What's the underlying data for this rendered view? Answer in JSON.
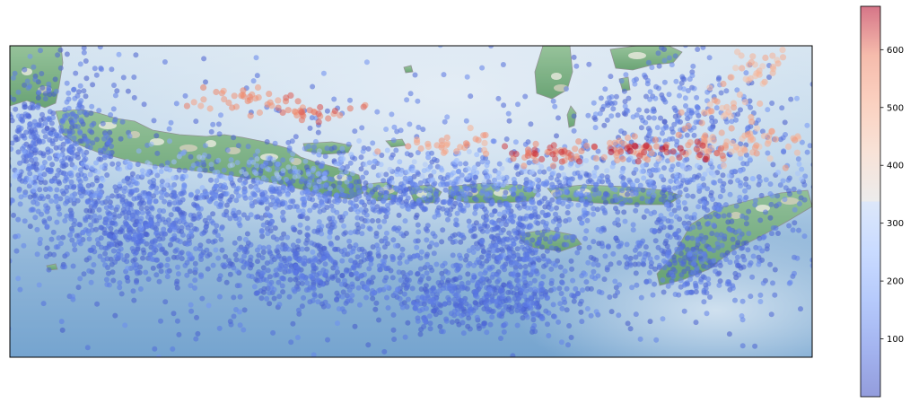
{
  "chart_data": {
    "type": "scatter",
    "title": "",
    "xlabel": "",
    "ylabel": "",
    "basemap": "shaded-relief",
    "grid": false,
    "colormap": "coolwarm",
    "colorbar": {
      "position": "right",
      "range": [
        0,
        675
      ],
      "ticks": [
        100,
        200,
        300,
        400,
        500,
        600
      ],
      "tick_labels": [
        "100",
        "200",
        "300",
        "400",
        "500",
        "600"
      ]
    },
    "marker_alpha": 0.55,
    "point_clusters": [
      {
        "cx": 0.05,
        "cy": 0.3,
        "sx": 0.05,
        "sy": 0.12,
        "n": 520,
        "depth": [
          20,
          110
        ]
      },
      {
        "cx": 0.16,
        "cy": 0.6,
        "sx": 0.05,
        "sy": 0.08,
        "n": 420,
        "depth": [
          20,
          100
        ]
      },
      {
        "cx": 0.38,
        "cy": 0.72,
        "sx": 0.06,
        "sy": 0.06,
        "n": 350,
        "depth": [
          20,
          100
        ]
      },
      {
        "cx": 0.58,
        "cy": 0.82,
        "sx": 0.07,
        "sy": 0.05,
        "n": 420,
        "depth": [
          20,
          100
        ]
      },
      {
        "cx": 0.62,
        "cy": 0.65,
        "sx": 0.04,
        "sy": 0.07,
        "n": 280,
        "depth": [
          20,
          110
        ]
      },
      {
        "cx": 0.85,
        "cy": 0.68,
        "sx": 0.05,
        "sy": 0.08,
        "n": 300,
        "depth": [
          20,
          110
        ]
      },
      {
        "cx": 0.5,
        "cy": 0.47,
        "sx": 0.28,
        "sy": 0.05,
        "n": 900,
        "depth": [
          30,
          150
        ]
      },
      {
        "cx": 0.45,
        "cy": 0.55,
        "sx": 0.3,
        "sy": 0.15,
        "n": 900,
        "depth": [
          15,
          120
        ]
      },
      {
        "cx": 0.83,
        "cy": 0.25,
        "sx": 0.06,
        "sy": 0.12,
        "n": 300,
        "depth": [
          20,
          130
        ]
      },
      {
        "cx": 0.5,
        "cy": 0.5,
        "sx": 0.5,
        "sy": 0.35,
        "n": 450,
        "depth": [
          15,
          160
        ]
      },
      {
        "cx": 0.45,
        "cy": 0.4,
        "sx": 0.35,
        "sy": 0.03,
        "n": 300,
        "depth": [
          180,
          280
        ]
      },
      {
        "cx": 0.27,
        "cy": 0.17,
        "sx": 0.03,
        "sy": 0.02,
        "n": 28,
        "depth": [
          520,
          610
        ]
      },
      {
        "cx": 0.37,
        "cy": 0.21,
        "sx": 0.03,
        "sy": 0.02,
        "n": 35,
        "depth": [
          540,
          630
        ]
      },
      {
        "cx": 0.55,
        "cy": 0.31,
        "sx": 0.03,
        "sy": 0.02,
        "n": 28,
        "depth": [
          480,
          600
        ]
      },
      {
        "cx": 0.68,
        "cy": 0.35,
        "sx": 0.03,
        "sy": 0.015,
        "n": 45,
        "depth": [
          540,
          650
        ]
      },
      {
        "cx": 0.8,
        "cy": 0.34,
        "sx": 0.05,
        "sy": 0.02,
        "n": 70,
        "depth": [
          520,
          670
        ]
      },
      {
        "cx": 0.9,
        "cy": 0.31,
        "sx": 0.05,
        "sy": 0.03,
        "n": 60,
        "depth": [
          430,
          560
        ]
      },
      {
        "cx": 0.93,
        "cy": 0.07,
        "sx": 0.02,
        "sy": 0.03,
        "n": 30,
        "depth": [
          430,
          520
        ]
      },
      {
        "cx": 0.9,
        "cy": 0.22,
        "sx": 0.03,
        "sy": 0.05,
        "n": 30,
        "depth": [
          440,
          560
        ]
      }
    ]
  }
}
